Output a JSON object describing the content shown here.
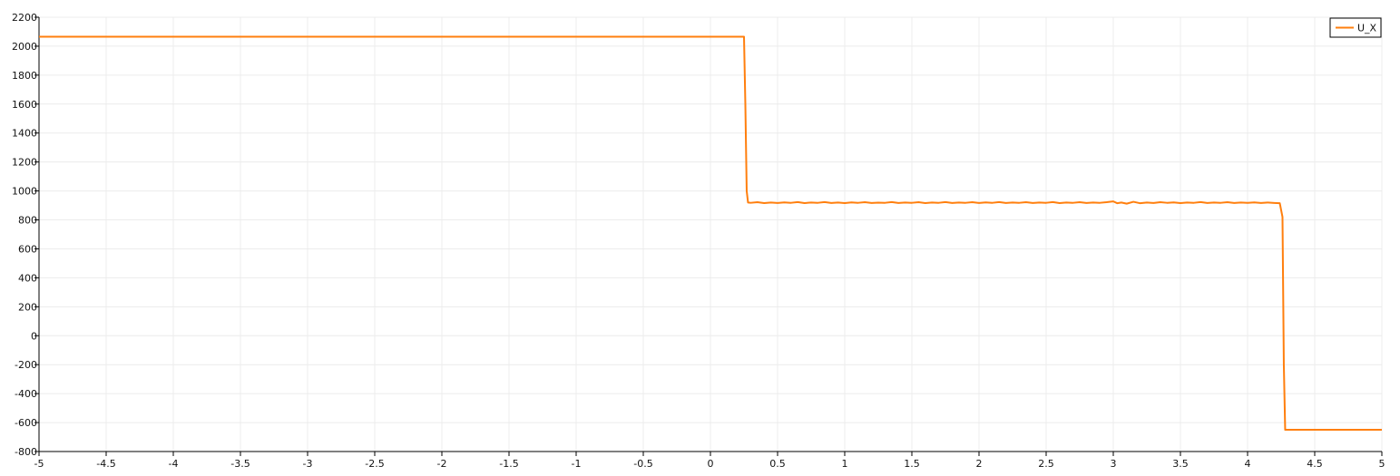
{
  "chart_data": {
    "type": "line",
    "title": "",
    "xlabel": "",
    "ylabel": "",
    "xlim": [
      -5,
      5
    ],
    "ylim": [
      -800,
      2200
    ],
    "xticks": [
      -5,
      -4.5,
      -4,
      -3.5,
      -3,
      -2.5,
      -2,
      -1.5,
      -1,
      -0.5,
      0,
      0.5,
      1,
      1.5,
      2,
      2.5,
      3,
      3.5,
      4,
      4.5,
      5
    ],
    "yticks": [
      -800,
      -600,
      -400,
      -200,
      0,
      200,
      400,
      600,
      800,
      1000,
      1200,
      1400,
      1600,
      1800,
      2000,
      2200
    ],
    "xtick_labels": [
      "-5",
      "-4.5",
      "-4",
      "-3.5",
      "-3",
      "-2.5",
      "-2",
      "-1.5",
      "-1",
      "-0.5",
      "0",
      "0.5",
      "1",
      "1.5",
      "2",
      "2.5",
      "3",
      "3.5",
      "4",
      "4.5",
      "5"
    ],
    "ytick_labels": [
      "-800",
      "-600",
      "-400",
      "-200",
      "0",
      "200",
      "400",
      "600",
      "800",
      "1000",
      "1200",
      "1400",
      "1600",
      "1800",
      "2000",
      "2200"
    ],
    "grid": true,
    "legend_position": "top-right",
    "series": [
      {
        "name": "U_X",
        "color": "#ff7f0e",
        "x": [
          -5,
          0.25,
          0.26,
          0.27,
          0.28,
          0.3,
          0.35,
          0.4,
          0.45,
          0.5,
          0.55,
          0.6,
          0.65,
          0.7,
          0.75,
          0.8,
          0.85,
          0.9,
          0.95,
          1.0,
          1.05,
          1.1,
          1.15,
          1.2,
          1.25,
          1.3,
          1.35,
          1.4,
          1.45,
          1.5,
          1.55,
          1.6,
          1.65,
          1.7,
          1.75,
          1.8,
          1.85,
          1.9,
          1.95,
          2.0,
          2.05,
          2.1,
          2.15,
          2.2,
          2.25,
          2.3,
          2.35,
          2.4,
          2.45,
          2.5,
          2.55,
          2.6,
          2.65,
          2.7,
          2.75,
          2.8,
          2.85,
          2.9,
          2.95,
          3.0,
          3.03,
          3.06,
          3.1,
          3.15,
          3.2,
          3.25,
          3.3,
          3.35,
          3.4,
          3.45,
          3.5,
          3.55,
          3.6,
          3.65,
          3.7,
          3.75,
          3.8,
          3.85,
          3.9,
          3.95,
          4.0,
          4.05,
          4.1,
          4.15,
          4.2,
          4.24,
          4.26,
          4.27,
          4.28,
          4.3,
          5
        ],
        "values": [
          2065,
          2065,
          1600,
          1000,
          920,
          918,
          922,
          916,
          920,
          917,
          921,
          918,
          923,
          916,
          920,
          918,
          923,
          917,
          920,
          916,
          921,
          918,
          922,
          917,
          919,
          918,
          923,
          917,
          920,
          918,
          922,
          916,
          920,
          918,
          923,
          917,
          920,
          918,
          922,
          917,
          921,
          918,
          923,
          917,
          920,
          918,
          922,
          917,
          920,
          918,
          923,
          916,
          920,
          918,
          922,
          917,
          920,
          918,
          922,
          928,
          915,
          920,
          912,
          925,
          915,
          920,
          917,
          922,
          918,
          921,
          916,
          920,
          918,
          923,
          917,
          920,
          918,
          922,
          917,
          920,
          918,
          921,
          917,
          920,
          917,
          915,
          820,
          -200,
          -650,
          -650,
          -650
        ]
      }
    ]
  }
}
